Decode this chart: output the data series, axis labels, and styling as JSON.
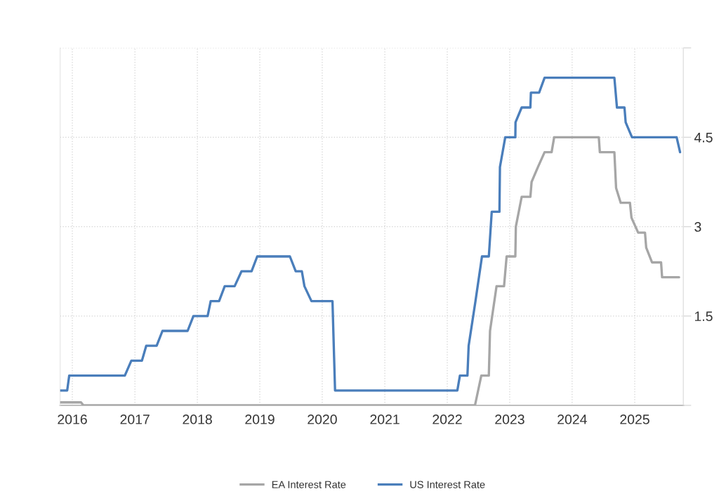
{
  "chart_data": {
    "type": "line",
    "series": [
      {
        "name": "EA Interest Rate",
        "color": "#a6a6a6",
        "x": [
          "2015-10-22",
          "2016-02-21",
          "2016-03-06",
          "2022-06-12",
          "2022-07-19",
          "2022-09-01",
          "2022-09-08",
          "2022-10-16",
          "2022-11-29",
          "2022-12-14",
          "2023-02-03",
          "2023-02-06",
          "2023-03-12",
          "2023-05-02",
          "2023-05-09",
          "2023-06-15",
          "2023-07-24",
          "2023-09-03",
          "2023-09-18",
          "2024-06-05",
          "2024-06-11",
          "2024-09-04",
          "2024-09-14",
          "2024-10-11",
          "2024-12-04",
          "2024-12-13",
          "2025-01-21",
          "2025-03-02",
          "2025-03-09",
          "2025-04-12",
          "2025-06-04",
          "2025-06-10",
          "2025-09-17"
        ],
        "values": [
          0.05,
          0.05,
          0,
          0,
          0.5,
          0.5,
          1.25,
          2.0,
          2.0,
          2.5,
          2.5,
          3.0,
          3.5,
          3.5,
          3.75,
          4.0,
          4.25,
          4.25,
          4.5,
          4.5,
          4.25,
          4.25,
          3.65,
          3.4,
          3.4,
          3.15,
          2.9,
          2.9,
          2.65,
          2.4,
          2.4,
          2.15,
          2.15
        ]
      },
      {
        "name": "US Interest Rate",
        "color": "#4a7ebb",
        "x": [
          "2015-10-22",
          "2015-12-02",
          "2015-12-14",
          "2016-11-03",
          "2016-12-11",
          "2017-02-11",
          "2017-03-08",
          "2017-05-08",
          "2017-06-11",
          "2017-11-05",
          "2017-12-09",
          "2018-03-02",
          "2018-03-20",
          "2018-05-08",
          "2018-06-10",
          "2018-08-07",
          "2018-09-16",
          "2018-11-14",
          "2018-12-17",
          "2019-06-26",
          "2019-07-30",
          "2019-09-04",
          "2019-09-19",
          "2019-10-30",
          "2020-03-01",
          "2020-03-16",
          "2022-03-01",
          "2022-03-16",
          "2022-04-29",
          "2022-05-06",
          "2022-06-15",
          "2022-07-23",
          "2022-09-01",
          "2022-09-18",
          "2022-11-02",
          "2022-11-05",
          "2022-12-06",
          "2023-02-03",
          "2023-02-04",
          "2023-03-12",
          "2023-05-02",
          "2023-05-05",
          "2023-06-22",
          "2023-07-24",
          "2024-09-04",
          "2024-09-19",
          "2024-11-02",
          "2024-11-09",
          "2024-12-16",
          "2025-09-03",
          "2025-09-23"
        ],
        "values": [
          0.25,
          0.25,
          0.5,
          0.5,
          0.75,
          0.75,
          1.0,
          1.0,
          1.25,
          1.25,
          1.5,
          1.5,
          1.75,
          1.75,
          2.0,
          2.0,
          2.25,
          2.25,
          2.5,
          2.5,
          2.25,
          2.25,
          2.0,
          1.75,
          1.75,
          0.25,
          0.25,
          0.5,
          0.5,
          1.0,
          1.75,
          2.5,
          2.5,
          3.25,
          3.25,
          4.0,
          4.5,
          4.5,
          4.75,
          5.0,
          5.0,
          5.25,
          5.25,
          5.5,
          5.5,
          5.0,
          5.0,
          4.75,
          4.5,
          4.5,
          4.25
        ]
      }
    ],
    "xlim": [
      "2015-10-22",
      "2025-10-12"
    ],
    "xticks": [
      "2016",
      "2017",
      "2018",
      "2019",
      "2020",
      "2021",
      "2022",
      "2023",
      "2024",
      "2025"
    ],
    "ylim": [
      0,
      6
    ],
    "yticks": [
      {
        "value": 0,
        "label": null
      },
      1.5,
      3,
      4.5,
      {
        "value": 6,
        "label": null
      }
    ],
    "grid": true,
    "legend": "bottom"
  }
}
